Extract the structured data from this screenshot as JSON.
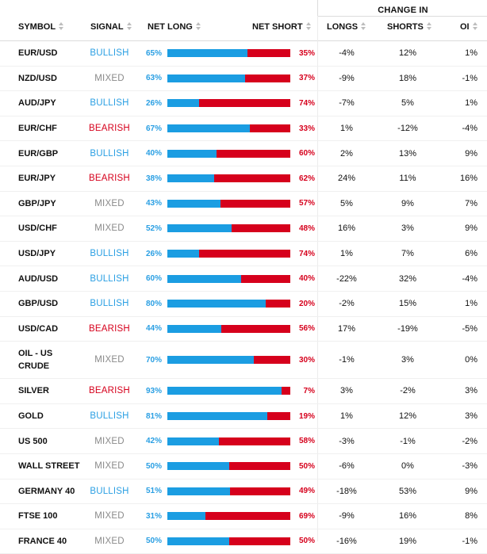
{
  "header": {
    "change_in": "CHANGE IN",
    "symbol": "SYMBOL",
    "signal": "SIGNAL",
    "net_long": "NET LONG",
    "net_short": "NET SHORT",
    "longs": "LONGS",
    "shorts": "SHORTS",
    "oi": "OI"
  },
  "colors": {
    "long": "#1b9de2",
    "short": "#d6001c",
    "mixed": "#8a8a8a"
  },
  "rows": [
    {
      "symbol": "EUR/USD",
      "signal": "BULLISH",
      "net_long": "65%",
      "net_short": "35%",
      "long_frac": 0.65,
      "longs": "-4%",
      "shorts": "12%",
      "oi": "1%"
    },
    {
      "symbol": "NZD/USD",
      "signal": "MIXED",
      "net_long": "63%",
      "net_short": "37%",
      "long_frac": 0.63,
      "longs": "-9%",
      "shorts": "18%",
      "oi": "-1%"
    },
    {
      "symbol": "AUD/JPY",
      "signal": "BULLISH",
      "net_long": "26%",
      "net_short": "74%",
      "long_frac": 0.26,
      "longs": "-7%",
      "shorts": "5%",
      "oi": "1%"
    },
    {
      "symbol": "EUR/CHF",
      "signal": "BEARISH",
      "net_long": "67%",
      "net_short": "33%",
      "long_frac": 0.67,
      "longs": "1%",
      "shorts": "-12%",
      "oi": "-4%"
    },
    {
      "symbol": "EUR/GBP",
      "signal": "BULLISH",
      "net_long": "40%",
      "net_short": "60%",
      "long_frac": 0.4,
      "longs": "2%",
      "shorts": "13%",
      "oi": "9%"
    },
    {
      "symbol": "EUR/JPY",
      "signal": "BEARISH",
      "net_long": "38%",
      "net_short": "62%",
      "long_frac": 0.38,
      "longs": "24%",
      "shorts": "11%",
      "oi": "16%"
    },
    {
      "symbol": "GBP/JPY",
      "signal": "MIXED",
      "net_long": "43%",
      "net_short": "57%",
      "long_frac": 0.43,
      "longs": "5%",
      "shorts": "9%",
      "oi": "7%"
    },
    {
      "symbol": "USD/CHF",
      "signal": "MIXED",
      "net_long": "52%",
      "net_short": "48%",
      "long_frac": 0.52,
      "longs": "16%",
      "shorts": "3%",
      "oi": "9%"
    },
    {
      "symbol": "USD/JPY",
      "signal": "BULLISH",
      "net_long": "26%",
      "net_short": "74%",
      "long_frac": 0.26,
      "longs": "1%",
      "shorts": "7%",
      "oi": "6%"
    },
    {
      "symbol": "AUD/USD",
      "signal": "BULLISH",
      "net_long": "60%",
      "net_short": "40%",
      "long_frac": 0.6,
      "longs": "-22%",
      "shorts": "32%",
      "oi": "-4%"
    },
    {
      "symbol": "GBP/USD",
      "signal": "BULLISH",
      "net_long": "80%",
      "net_short": "20%",
      "long_frac": 0.8,
      "longs": "-2%",
      "shorts": "15%",
      "oi": "1%"
    },
    {
      "symbol": "USD/CAD",
      "signal": "BEARISH",
      "net_long": "44%",
      "net_short": "56%",
      "long_frac": 0.44,
      "longs": "17%",
      "shorts": "-19%",
      "oi": "-5%"
    },
    {
      "symbol": "OIL - US CRUDE",
      "signal": "MIXED",
      "net_long": "70%",
      "net_short": "30%",
      "long_frac": 0.7,
      "longs": "-1%",
      "shorts": "3%",
      "oi": "0%"
    },
    {
      "symbol": "SILVER",
      "signal": "BEARISH",
      "net_long": "93%",
      "net_short": "7%",
      "long_frac": 0.93,
      "longs": "3%",
      "shorts": "-2%",
      "oi": "3%"
    },
    {
      "symbol": "GOLD",
      "signal": "BULLISH",
      "net_long": "81%",
      "net_short": "19%",
      "long_frac": 0.81,
      "longs": "1%",
      "shorts": "12%",
      "oi": "3%"
    },
    {
      "symbol": "US 500",
      "signal": "MIXED",
      "net_long": "42%",
      "net_short": "58%",
      "long_frac": 0.42,
      "longs": "-3%",
      "shorts": "-1%",
      "oi": "-2%"
    },
    {
      "symbol": "WALL STREET",
      "signal": "MIXED",
      "net_long": "50%",
      "net_short": "50%",
      "long_frac": 0.5,
      "longs": "-6%",
      "shorts": "0%",
      "oi": "-3%"
    },
    {
      "symbol": "GERMANY 40",
      "signal": "BULLISH",
      "net_long": "51%",
      "net_short": "49%",
      "long_frac": 0.51,
      "longs": "-18%",
      "shorts": "53%",
      "oi": "9%"
    },
    {
      "symbol": "FTSE 100",
      "signal": "MIXED",
      "net_long": "31%",
      "net_short": "69%",
      "long_frac": 0.31,
      "longs": "-9%",
      "shorts": "16%",
      "oi": "8%"
    },
    {
      "symbol": "FRANCE 40",
      "signal": "MIXED",
      "net_long": "50%",
      "net_short": "50%",
      "long_frac": 0.5,
      "longs": "-16%",
      "shorts": "19%",
      "oi": "-1%"
    }
  ]
}
